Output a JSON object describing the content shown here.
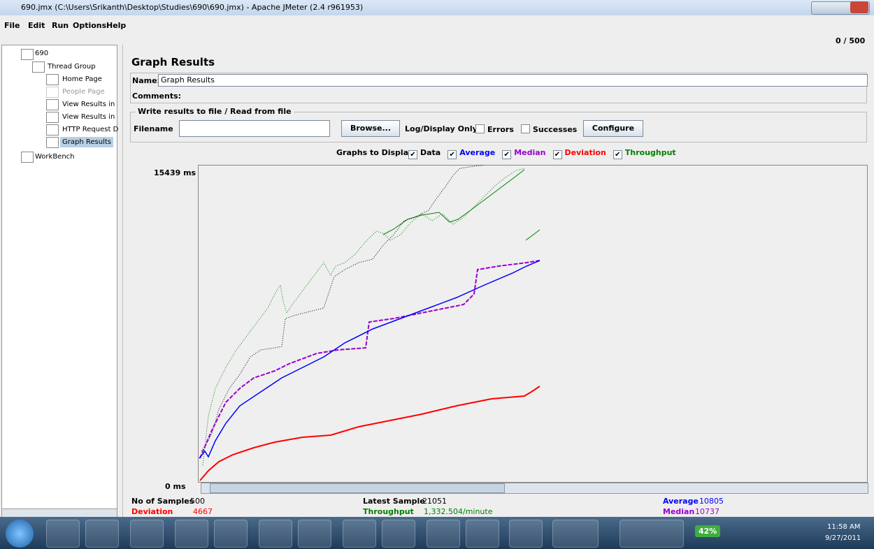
{
  "window": {
    "title": "690.jmx (C:\\Users\\Srikanth\\Desktop\\Studies\\690\\690.jmx) - Apache JMeter (2.4 r961953)"
  },
  "menu": [
    "File",
    "Edit",
    "Run",
    "Options",
    "Help"
  ],
  "counter": "0 / 500",
  "tree": [
    "690",
    "Thread Group",
    "Home Page",
    "People Page",
    "View Results in",
    "View Results in",
    "HTTP Request D",
    "Graph Results",
    "WorkBench"
  ],
  "panel": {
    "title": "Graph Results",
    "name_label": "Name:",
    "name_value": "Graph Results",
    "comments_label": "Comments:"
  },
  "file": {
    "legend": "Write results to file / Read from file",
    "filename_label": "Filename",
    "browse": "Browse...",
    "log_label": "Log/Display Only:",
    "errors": "Errors",
    "successes": "Successes",
    "configure": "Configure"
  },
  "graphs": {
    "label": "Graphs to Display",
    "options": [
      {
        "name": "Data",
        "color": "#000000"
      },
      {
        "name": "Average",
        "color": "#0000ff"
      },
      {
        "name": "Median",
        "color": "#9900cc"
      },
      {
        "name": "Deviation",
        "color": "#ff0000"
      },
      {
        "name": "Throughput",
        "color": "#008000"
      }
    ],
    "y_max": "15439 ms",
    "y_min": "0 ms"
  },
  "stats": [
    {
      "label": "No of Samples",
      "value": 500,
      "color": "#000000"
    },
    {
      "label": "Deviation",
      "value": 4667,
      "color": "#ff0000"
    },
    {
      "label": "Latest Sample",
      "value": 21051,
      "color": "#000000"
    },
    {
      "label": "Throughput",
      "value": "1,332.504/minute",
      "color": "#008000"
    },
    {
      "label": "Average",
      "value": 10805,
      "color": "#0000ff"
    },
    {
      "label": "Median",
      "value": 10737,
      "color": "#9900cc"
    }
  ],
  "taskbar": {
    "battery": "42%",
    "time": "11:58 AM",
    "date": "9/27/2011"
  }
}
